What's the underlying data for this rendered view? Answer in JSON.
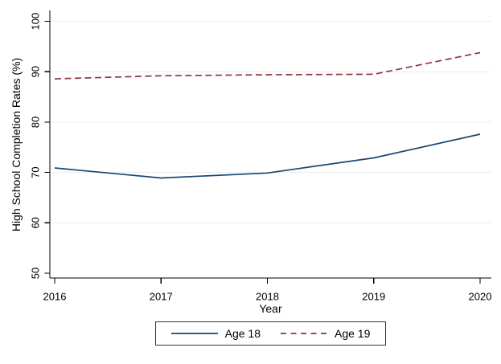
{
  "chart_data": {
    "type": "line",
    "title": "",
    "xlabel": "Year",
    "ylabel": "High School Completion Rates (%)",
    "x": [
      2016,
      2017,
      2018,
      2019,
      2020
    ],
    "xticks": [
      2016,
      2017,
      2018,
      2019,
      2020
    ],
    "yticks": [
      50,
      60,
      70,
      80,
      90,
      100
    ],
    "ylim": [
      50,
      100
    ],
    "grid": true,
    "legend_position": "bottom-center",
    "series": [
      {
        "name": "Age 18",
        "values": [
          70.9,
          68.9,
          69.9,
          72.9,
          77.6
        ],
        "color": "#1a476f",
        "line_style": "solid"
      },
      {
        "name": "Age 19",
        "values": [
          88.6,
          89.2,
          89.4,
          89.5,
          93.8
        ],
        "color": "#90353b",
        "line_style": "dashed"
      }
    ]
  },
  "colors": {
    "background": "#ffffff",
    "grid": "#e8eff1",
    "axis": "#000000",
    "tick_label": "#000000",
    "legend_border": "#333333",
    "age18_line": "#1a476f",
    "age19_line": "#90353b"
  }
}
